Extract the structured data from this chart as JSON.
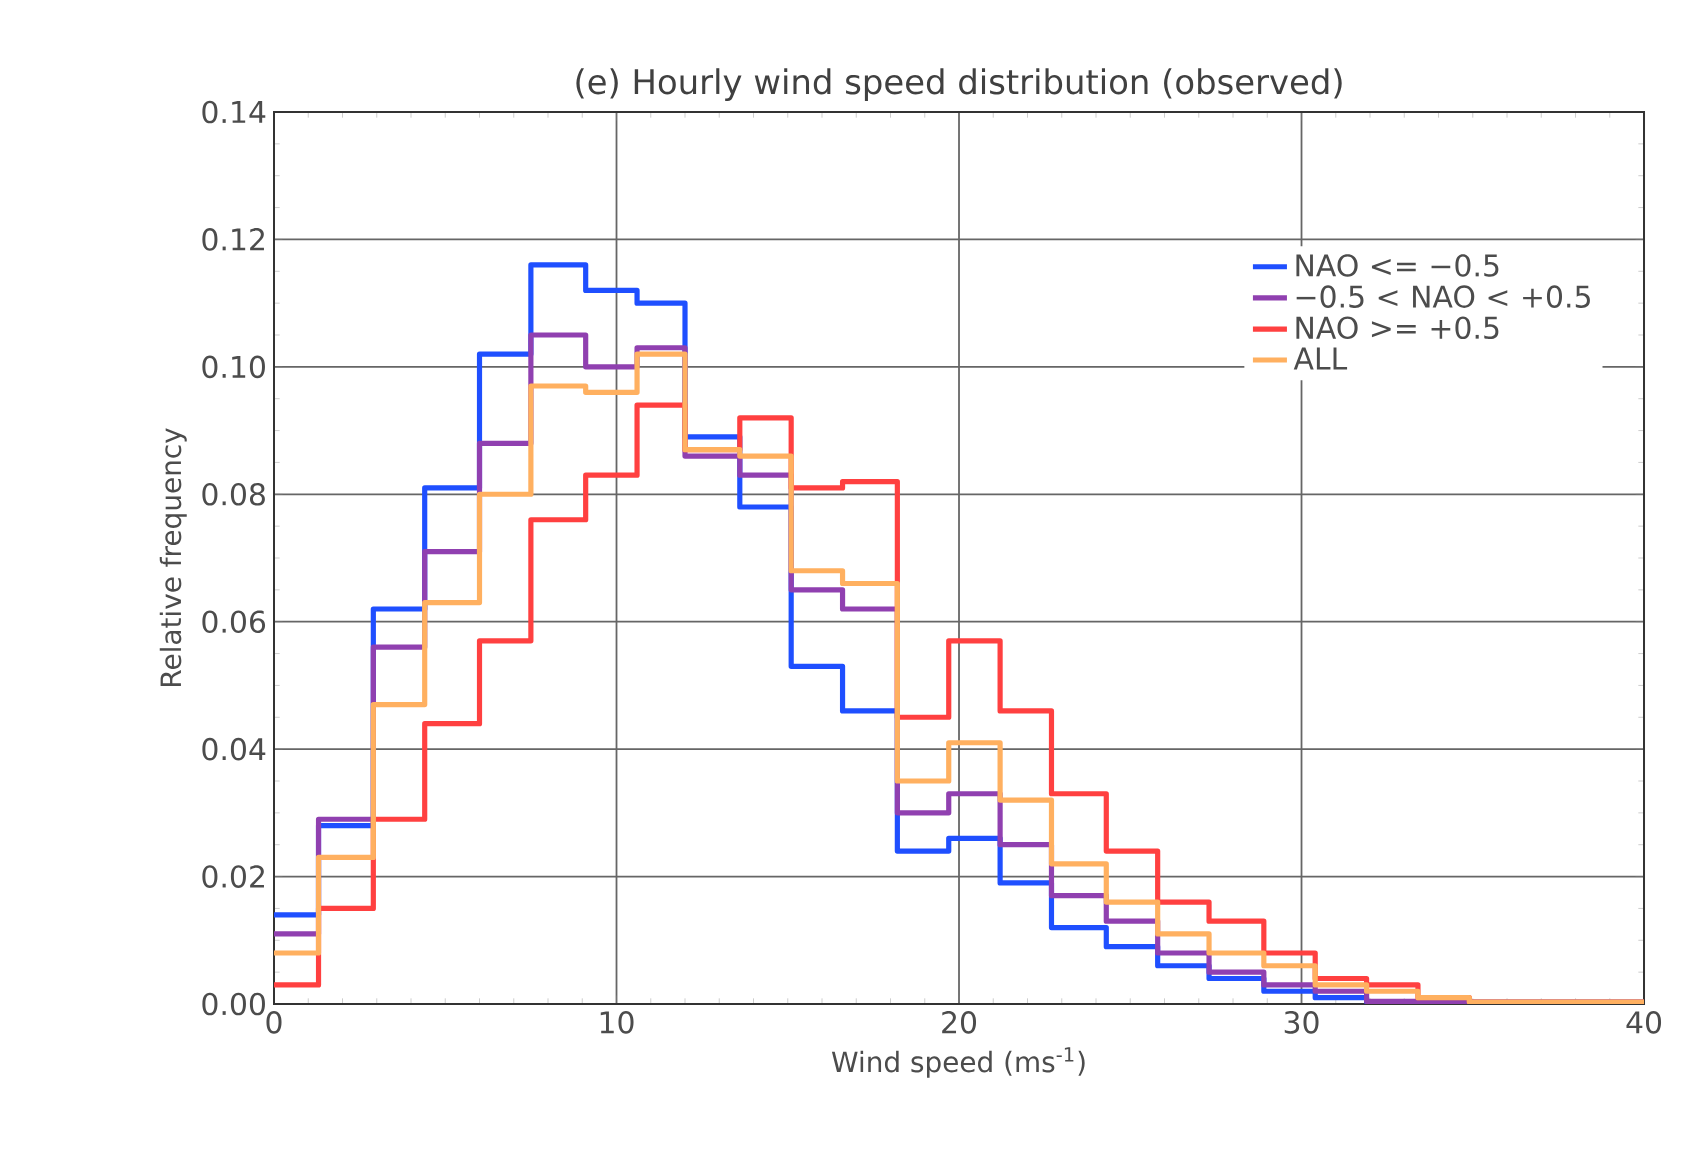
{
  "chart_data": {
    "type": "histogram",
    "title": "(e) Hourly wind speed distribution (observed)",
    "xlabel": "Wind speed (ms$^{-1}$)",
    "ylabel": "Relative frequency",
    "bins": [
      0,
      1.3,
      2.9,
      4.4,
      6.0,
      7.5,
      9.1,
      10.6,
      12.0,
      13.6,
      15.1,
      16.6,
      18.2,
      19.7,
      21.2,
      22.7,
      24.3,
      25.8,
      27.3,
      28.9,
      30.4,
      31.9,
      33.4,
      34.9,
      36.4,
      38.0,
      40
    ],
    "series": [
      {
        "name": "NAO <= −0.5",
        "color": "#1f4fff",
        "values": [
          0.014,
          0.028,
          0.062,
          0.081,
          0.102,
          0.116,
          0.112,
          0.11,
          0.089,
          0.078,
          0.053,
          0.046,
          0.024,
          0.026,
          0.019,
          0.012,
          0.009,
          0.006,
          0.004,
          0.002,
          0.001,
          0.0003,
          0.0003,
          0.0003,
          0.0003,
          0.0003
        ]
      },
      {
        "name": "−0.5 < NAO < +0.5",
        "color": "#9040b0",
        "values": [
          0.011,
          0.029,
          0.056,
          0.071,
          0.088,
          0.105,
          0.1,
          0.103,
          0.086,
          0.083,
          0.065,
          0.062,
          0.03,
          0.033,
          0.025,
          0.017,
          0.013,
          0.008,
          0.005,
          0.003,
          0.002,
          0.0004,
          0.0002,
          0.0,
          0.0,
          0.0
        ]
      },
      {
        "name": "NAO >= +0.5",
        "color": "#ff4040",
        "values": [
          0.003,
          0.015,
          0.029,
          0.044,
          0.057,
          0.076,
          0.083,
          0.094,
          0.087,
          0.092,
          0.081,
          0.082,
          0.045,
          0.057,
          0.046,
          0.033,
          0.024,
          0.016,
          0.013,
          0.008,
          0.004,
          0.003,
          0.001,
          0.0003,
          0.0003,
          0.0003
        ]
      },
      {
        "name": "ALL",
        "color": "#ffb060",
        "values": [
          0.008,
          0.023,
          0.047,
          0.063,
          0.08,
          0.097,
          0.096,
          0.102,
          0.087,
          0.086,
          0.068,
          0.066,
          0.035,
          0.041,
          0.032,
          0.022,
          0.016,
          0.011,
          0.008,
          0.006,
          0.003,
          0.002,
          0.001,
          0.0003,
          0.0003,
          0.0003
        ]
      }
    ],
    "xlim": [
      0,
      40
    ],
    "ylim": [
      0,
      0.14
    ],
    "xticks": [
      0,
      10,
      20,
      30,
      40
    ],
    "yticks": [
      {
        "value": 0,
        "label": "0.00"
      },
      {
        "value": 0.02,
        "label": "0.02"
      },
      {
        "value": 0.04,
        "label": "0.04"
      },
      {
        "value": 0.06,
        "label": "0.06"
      },
      {
        "value": 0.08,
        "label": "0.08"
      },
      {
        "value": 0.1,
        "label": "0.10"
      },
      {
        "value": 0.12,
        "label": "0.12"
      },
      {
        "value": 0.14,
        "label": "0.14"
      }
    ],
    "grid": true,
    "legend": "top right"
  }
}
